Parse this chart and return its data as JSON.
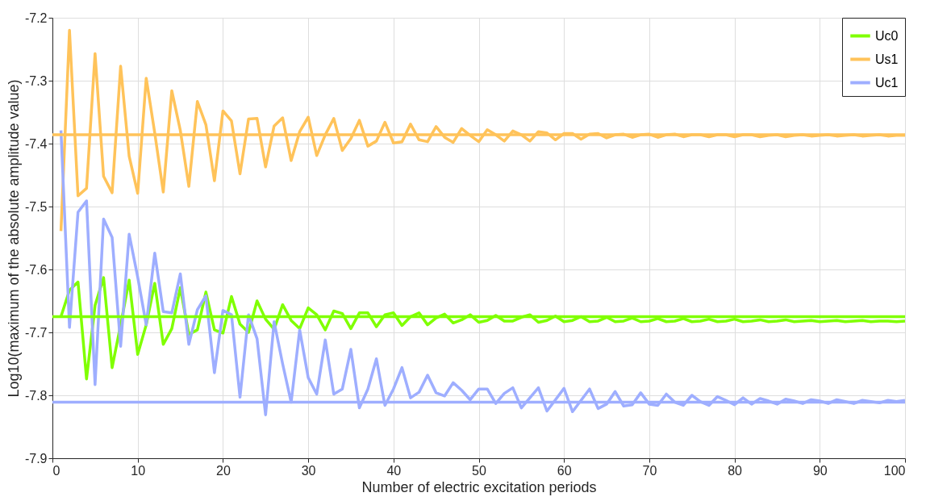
{
  "chart_data": {
    "type": "line",
    "xlabel": "Number of electric excitation periods",
    "ylabel": "Log10(maximum of the absolute amplitude value)",
    "x": [
      1,
      2,
      3,
      4,
      5,
      6,
      7,
      8,
      9,
      10,
      11,
      12,
      13,
      14,
      15,
      16,
      17,
      18,
      19,
      20,
      21,
      22,
      23,
      24,
      25,
      26,
      27,
      28,
      29,
      30,
      31,
      32,
      33,
      34,
      35,
      36,
      37,
      38,
      39,
      40,
      41,
      42,
      43,
      44,
      45,
      46,
      47,
      48,
      49,
      50,
      51,
      52,
      53,
      54,
      55,
      56,
      57,
      58,
      59,
      60,
      61,
      62,
      63,
      64,
      65,
      66,
      67,
      68,
      69,
      70,
      71,
      72,
      73,
      74,
      75,
      76,
      77,
      78,
      79,
      80,
      81,
      82,
      83,
      84,
      85,
      86,
      87,
      88,
      89,
      90,
      91,
      92,
      93,
      94,
      95,
      96,
      97,
      98,
      99,
      100
    ],
    "series": [
      {
        "name": "Uc0",
        "color": "#80ff00",
        "values": [
          -7.675,
          -7.633,
          -7.62,
          -7.774,
          -7.657,
          -7.613,
          -7.756,
          -7.688,
          -7.617,
          -7.735,
          -7.688,
          -7.622,
          -7.719,
          -7.694,
          -7.629,
          -7.703,
          -7.696,
          -7.636,
          -7.696,
          -7.701,
          -7.643,
          -7.687,
          -7.7,
          -7.65,
          -7.679,
          -7.695,
          -7.656,
          -7.681,
          -7.694,
          -7.661,
          -7.672,
          -7.696,
          -7.666,
          -7.67,
          -7.694,
          -7.669,
          -7.669,
          -7.691,
          -7.672,
          -7.669,
          -7.689,
          -7.675,
          -7.669,
          -7.688,
          -7.677,
          -7.671,
          -7.685,
          -7.68,
          -7.672,
          -7.684,
          -7.681,
          -7.673,
          -7.682,
          -7.682,
          -7.676,
          -7.672,
          -7.684,
          -7.681,
          -7.674,
          -7.683,
          -7.681,
          -7.675,
          -7.683,
          -7.682,
          -7.676,
          -7.683,
          -7.682,
          -7.677,
          -7.683,
          -7.682,
          -7.678,
          -7.683,
          -7.682,
          -7.678,
          -7.683,
          -7.682,
          -7.679,
          -7.683,
          -7.682,
          -7.679,
          -7.683,
          -7.682,
          -7.68,
          -7.683,
          -7.682,
          -7.68,
          -7.683,
          -7.682,
          -7.681,
          -7.683,
          -7.682,
          -7.681,
          -7.683,
          -7.682,
          -7.681,
          -7.683,
          -7.682,
          -7.682,
          -7.683,
          -7.682
        ]
      },
      {
        "name": "Us1",
        "color": "#ffc35a",
        "values": [
          -7.539,
          -7.22,
          -7.483,
          -7.471,
          -7.257,
          -7.452,
          -7.478,
          -7.277,
          -7.42,
          -7.479,
          -7.296,
          -7.383,
          -7.477,
          -7.316,
          -7.379,
          -7.468,
          -7.333,
          -7.37,
          -7.459,
          -7.348,
          -7.364,
          -7.448,
          -7.361,
          -7.36,
          -7.437,
          -7.372,
          -7.359,
          -7.427,
          -7.381,
          -7.358,
          -7.419,
          -7.386,
          -7.36,
          -7.411,
          -7.392,
          -7.363,
          -7.404,
          -7.396,
          -7.366,
          -7.399,
          -7.397,
          -7.369,
          -7.394,
          -7.397,
          -7.373,
          -7.39,
          -7.398,
          -7.376,
          -7.387,
          -7.397,
          -7.378,
          -7.386,
          -7.396,
          -7.38,
          -7.386,
          -7.396,
          -7.381,
          -7.383,
          -7.394,
          -7.384,
          -7.384,
          -7.393,
          -7.385,
          -7.384,
          -7.391,
          -7.386,
          -7.385,
          -7.39,
          -7.386,
          -7.385,
          -7.39,
          -7.386,
          -7.385,
          -7.389,
          -7.386,
          -7.386,
          -7.389,
          -7.386,
          -7.386,
          -7.389,
          -7.386,
          -7.386,
          -7.389,
          -7.387,
          -7.386,
          -7.389,
          -7.387,
          -7.386,
          -7.388,
          -7.387,
          -7.386,
          -7.388,
          -7.387,
          -7.386,
          -7.388,
          -7.387,
          -7.386,
          -7.388,
          -7.387,
          -7.387
        ]
      },
      {
        "name": "Uc1",
        "color": "#9eaeff",
        "values": [
          -7.379,
          -7.692,
          -7.509,
          -7.491,
          -7.783,
          -7.52,
          -7.549,
          -7.722,
          -7.544,
          -7.612,
          -7.688,
          -7.574,
          -7.667,
          -7.669,
          -7.607,
          -7.719,
          -7.664,
          -7.642,
          -7.764,
          -7.665,
          -7.672,
          -7.803,
          -7.672,
          -7.71,
          -7.831,
          -7.683,
          -7.75,
          -7.811,
          -7.696,
          -7.772,
          -7.798,
          -7.712,
          -7.798,
          -7.79,
          -7.727,
          -7.82,
          -7.79,
          -7.742,
          -7.816,
          -7.79,
          -7.756,
          -7.804,
          -7.795,
          -7.768,
          -7.796,
          -7.801,
          -7.78,
          -7.792,
          -7.807,
          -7.79,
          -7.79,
          -7.813,
          -7.797,
          -7.788,
          -7.82,
          -7.804,
          -7.788,
          -7.825,
          -7.807,
          -7.789,
          -7.826,
          -7.808,
          -7.79,
          -7.821,
          -7.814,
          -7.794,
          -7.817,
          -7.815,
          -7.796,
          -7.814,
          -7.816,
          -7.798,
          -7.811,
          -7.816,
          -7.8,
          -7.81,
          -7.816,
          -7.802,
          -7.808,
          -7.815,
          -7.804,
          -7.814,
          -7.805,
          -7.809,
          -7.814,
          -7.806,
          -7.809,
          -7.813,
          -7.807,
          -7.809,
          -7.813,
          -7.807,
          -7.81,
          -7.813,
          -7.808,
          -7.81,
          -7.812,
          -7.808,
          -7.81,
          -7.808
        ]
      }
    ],
    "ref_lines": [
      {
        "axis": "y",
        "value": -7.675,
        "color": "#80ff00"
      },
      {
        "axis": "y",
        "value": -7.386,
        "color": "#ffc35a"
      },
      {
        "axis": "y",
        "value": -7.811,
        "color": "#9eaeff"
      }
    ],
    "xlim": [
      0,
      100
    ],
    "xticks": [
      0,
      10,
      20,
      30,
      40,
      50,
      60,
      70,
      80,
      90,
      100
    ],
    "ylim": [
      -7.9,
      -7.2
    ],
    "yticks": [
      -7.9,
      -7.8,
      -7.7,
      -7.6,
      -7.5,
      -7.4,
      -7.3,
      -7.2
    ],
    "grid": true,
    "legend": "top right",
    "marker": "none",
    "line_style": "solid"
  }
}
